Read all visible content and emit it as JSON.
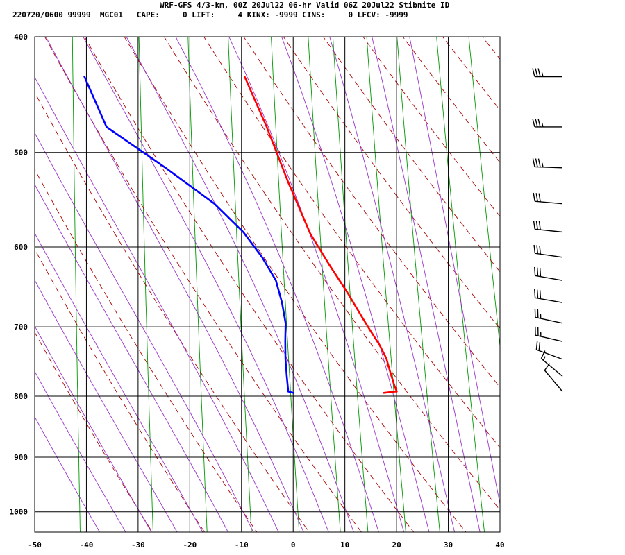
{
  "header": {
    "title": "WRF-GFS 4/3-km, 00Z 20Jul22 06-hr Valid 06Z 20Jul22 Stibnite ID",
    "info": "220720/0600 99999  MGC01   CAPE:     0 LIFT:     4 KINX: -9999 CINS:     0 LFCV: -9999"
  },
  "chart_data": {
    "type": "line",
    "title": "WRF-GFS 4/3-km, 00Z 20Jul22 06-hr Valid 06Z 20Jul22 Stibnite ID",
    "x_ticks": [
      -50,
      -40,
      -30,
      -20,
      -10,
      0,
      10,
      20,
      30,
      40
    ],
    "x_tick_labels": [
      "-50",
      "-40",
      "-30",
      "-20",
      "-10",
      "0",
      "10",
      "20",
      "30",
      "40"
    ],
    "y_ticks": [
      400,
      500,
      600,
      700,
      800,
      900,
      1000
    ],
    "y_tick_labels": [
      "400",
      "500",
      "600",
      "700",
      "800",
      "900",
      "1000"
    ],
    "xlim": [
      -50,
      40
    ],
    "ylim": [
      1040,
      400
    ],
    "y_scale": "log",
    "grid": true,
    "series": [
      {
        "color": "#ff0000",
        "points": [
          [
            -16,
            432
          ],
          [
            -11,
            476
          ],
          [
            -6,
            530
          ],
          [
            -1,
            585
          ],
          [
            3,
            620
          ],
          [
            7,
            655
          ],
          [
            10,
            685
          ],
          [
            12,
            705
          ],
          [
            14,
            725
          ],
          [
            15.5,
            744
          ],
          [
            16.5,
            765
          ],
          [
            17.5,
            785
          ],
          [
            18,
            793
          ],
          [
            17.5,
            793
          ],
          [
            15.5,
            795
          ]
        ]
      },
      {
        "color": "#0000ff",
        "points": [
          [
            -47,
            432
          ],
          [
            -42,
            476
          ],
          [
            -30,
            515
          ],
          [
            -20,
            552
          ],
          [
            -14,
            583
          ],
          [
            -10,
            612
          ],
          [
            -7,
            640
          ],
          [
            -5.5,
            668
          ],
          [
            -4.5,
            695
          ],
          [
            -4.3,
            720
          ],
          [
            -4,
            745
          ],
          [
            -3.5,
            770
          ],
          [
            -3,
            793
          ],
          [
            -2,
            795
          ]
        ]
      }
    ],
    "wind_barbs": [
      {
        "p": 432,
        "dir": 270,
        "speed": 35
      },
      {
        "p": 476,
        "dir": 270,
        "speed": 35
      },
      {
        "p": 515,
        "dir": 272,
        "speed": 35
      },
      {
        "p": 552,
        "dir": 275,
        "speed": 30
      },
      {
        "p": 583,
        "dir": 276,
        "speed": 30
      },
      {
        "p": 612,
        "dir": 278,
        "speed": 30
      },
      {
        "p": 640,
        "dir": 280,
        "speed": 30
      },
      {
        "p": 668,
        "dir": 280,
        "speed": 30
      },
      {
        "p": 695,
        "dir": 282,
        "speed": 25
      },
      {
        "p": 720,
        "dir": 283,
        "speed": 25
      },
      {
        "p": 745,
        "dir": 290,
        "speed": 20
      },
      {
        "p": 770,
        "dir": 310,
        "speed": 15
      },
      {
        "p": 793,
        "dir": 320,
        "speed": 10
      }
    ],
    "colors": {
      "grid": "#000000",
      "dry_adiabat": "#aa0000",
      "moist_adiabat": "#9933cc",
      "mixing_ratio": "#009900",
      "temperature": "#ff0000",
      "dewpoint": "#0000ff",
      "barb": "#000000"
    }
  }
}
